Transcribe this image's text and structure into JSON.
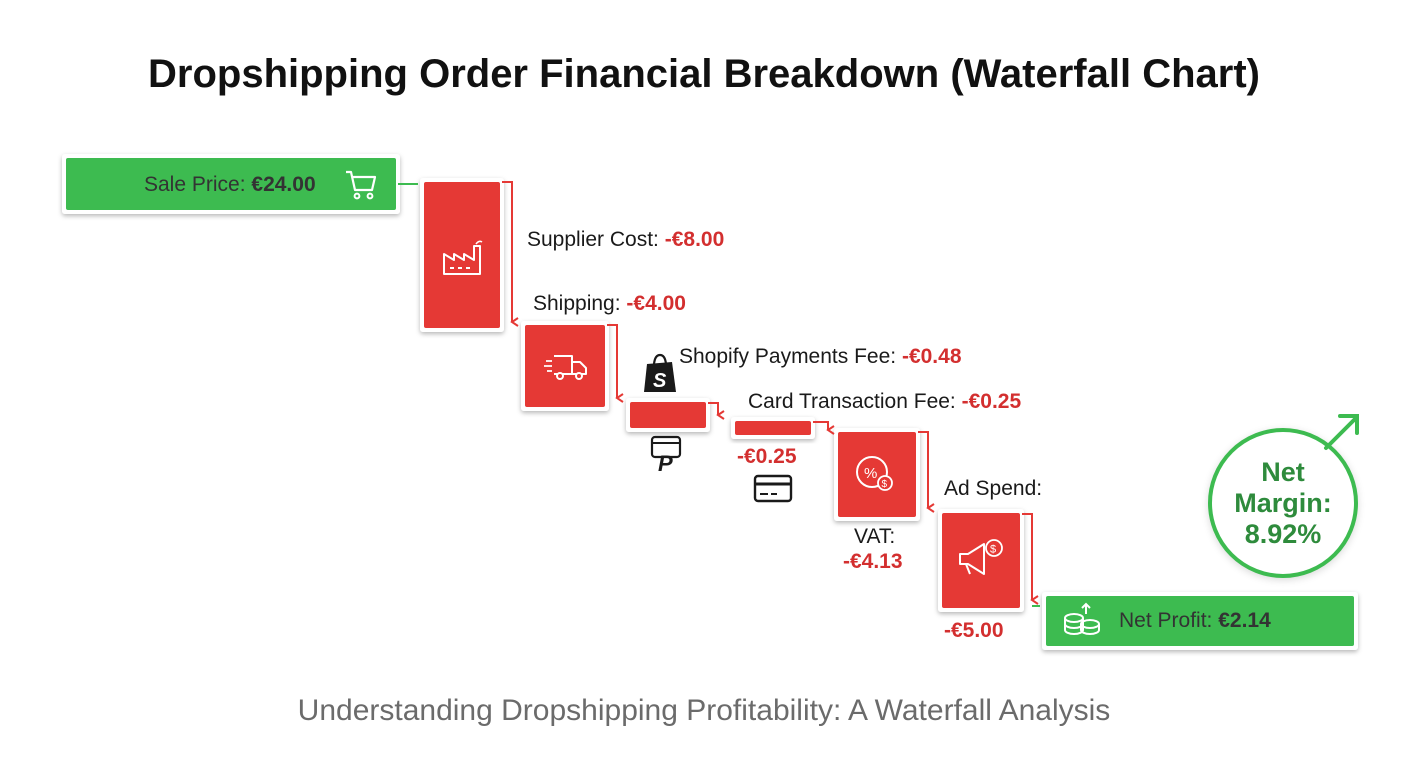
{
  "title": "Dropshipping Order Financial Breakdown (Waterfall Chart)",
  "subtitle": "Understanding Dropshipping Profitability: A Waterfall Analysis",
  "colors": {
    "positive": "#3dbb50",
    "negative": "#e53935",
    "negative_text": "#d32f2f",
    "connector_positive": "#3dbb50",
    "connector_negative": "#e53935"
  },
  "start": {
    "label": "Sale Price:",
    "value_text": "€24.00",
    "icon": "shopping-cart-icon"
  },
  "total": {
    "label": "Net Profit:",
    "value_text": "€2.14",
    "icon": "coins-icon"
  },
  "margin": {
    "line1": "Net",
    "line2": "Margin:",
    "value": "8.92%",
    "icon": "arrow-up-right-icon"
  },
  "steps": [
    {
      "label": "Supplier Cost:",
      "value_text": "-€8.00",
      "icon": "factory-icon"
    },
    {
      "label": "Shipping:",
      "value_text": "-€4.00",
      "icon": "truck-icon"
    },
    {
      "label": "Shopify Payments Fee:",
      "value_text": "-€0.48",
      "icon": "shopify-bag-icon"
    },
    {
      "label": "Card Transaction Fee:",
      "value_text": "-€0.25",
      "value_text_below": "-€0.25",
      "icon": "credit-card-icon"
    },
    {
      "label": "VAT:",
      "value_text": "-€4.13",
      "icon": "percent-icon"
    },
    {
      "label": "Ad Spend:",
      "value_text": "-€5.00",
      "icon": "megaphone-icon"
    }
  ],
  "chart_data": {
    "type": "waterfall",
    "categories": [
      "Sale Price",
      "Supplier Cost",
      "Shipping",
      "Shopify Payments Fee",
      "Card Transaction Fee",
      "VAT",
      "Ad Spend",
      "Net Profit"
    ],
    "values": [
      24.0,
      -8.0,
      -4.0,
      -0.48,
      -0.25,
      -4.13,
      -5.0,
      2.14
    ],
    "measures": [
      "absolute",
      "relative",
      "relative",
      "relative",
      "relative",
      "relative",
      "relative",
      "total"
    ],
    "currency": "€",
    "net_margin_percent": 8.92,
    "title": "Dropshipping Order Financial Breakdown (Waterfall Chart)",
    "subtitle": "Understanding Dropshipping Profitability: A Waterfall Analysis"
  }
}
